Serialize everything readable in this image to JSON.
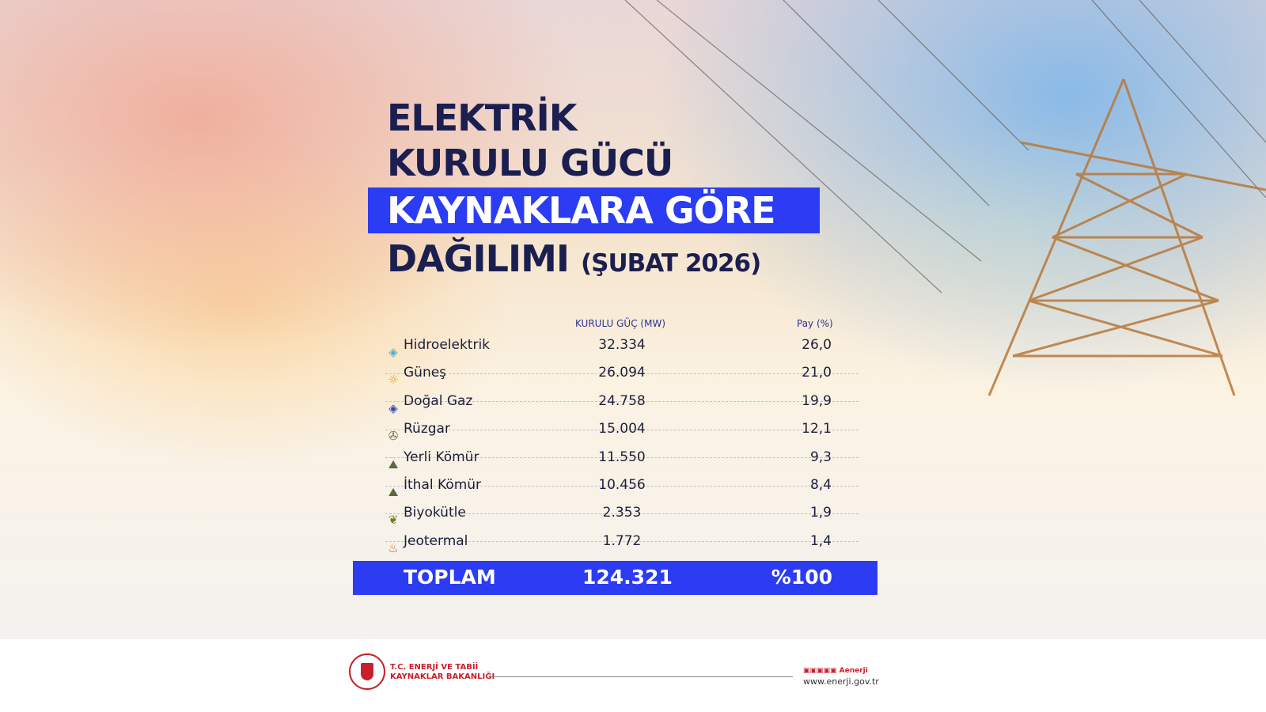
{
  "title": {
    "line1": "ELEKTRİK",
    "line2": "KURULU GÜCÜ",
    "line3": "KAYNAKLARA GÖRE",
    "line4": "DAĞILIMI",
    "period": "(ŞUBAT 2026)"
  },
  "chart_data": {
    "type": "table",
    "columns": [
      "",
      "KURULU GÜÇ (MW)",
      "Pay (%)"
    ],
    "rows": [
      {
        "icon": "water-drop-icon",
        "name": "Hidroelektrik",
        "mw": "32.334",
        "pay": "26,0"
      },
      {
        "icon": "sun-icon",
        "name": "Güneş",
        "mw": "26.094",
        "pay": "21,0"
      },
      {
        "icon": "gas-flame-icon",
        "name": "Doğal Gaz",
        "mw": "24.758",
        "pay": "19,9"
      },
      {
        "icon": "wind-turbine-icon",
        "name": "Rüzgar",
        "mw": "15.004",
        "pay": "12,1"
      },
      {
        "icon": "coal-icon",
        "name": "Yerli Kömür",
        "mw": "11.550",
        "pay": "9,3"
      },
      {
        "icon": "coal-icon",
        "name": "İthal Kömür",
        "mw": "10.456",
        "pay": "8,4"
      },
      {
        "icon": "biomass-icon",
        "name": "Biyokütle",
        "mw": "2.353",
        "pay": "1,9"
      },
      {
        "icon": "geothermal-icon",
        "name": "Jeotermal",
        "mw": "1.772",
        "pay": "1,4"
      }
    ],
    "total": {
      "label": "TOPLAM",
      "mw": "124.321",
      "pay": "%100"
    }
  },
  "footer": {
    "org_line1": "T.C. ENERJİ VE TABİİ",
    "org_line2": "KAYNAKLAR BAKANLIĞI",
    "social": "Aenerji",
    "website": "www.enerji.gov.tr"
  },
  "colors": {
    "accent": "#2b3cf2",
    "title": "#1b1f50",
    "brand_red": "#c8202a"
  }
}
